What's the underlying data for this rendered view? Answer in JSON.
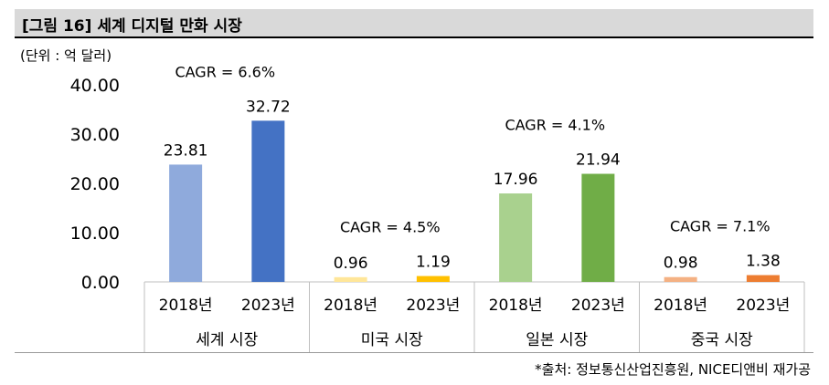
{
  "title": "[그림 16] 세계 디지털 만화 시장",
  "unit": "(단위 : 억 달러)",
  "source": "*출처: 정보통신산업진흥원, NICE디앤비 재가공",
  "colors": {
    "title_bg": "#d9d9d9",
    "axis": "#bfbfbf"
  },
  "chart_data": {
    "type": "bar",
    "title": "[그림 16] 세계 디지털 만화 시장",
    "ylabel": "(단위 : 억 달러)",
    "ylim": [
      0,
      40
    ],
    "yticks": [
      "0.00",
      "10.00",
      "20.00",
      "30.00",
      "40.00"
    ],
    "grid": false,
    "groups": [
      {
        "name": "세계 시장",
        "cagr_label": "CAGR =  6.6%",
        "bars": [
          {
            "year": "2018년",
            "value": 23.81,
            "label": "23.81",
            "color": "#8faadc"
          },
          {
            "year": "2023년",
            "value": 32.72,
            "label": "32.72",
            "color": "#4472c4"
          }
        ]
      },
      {
        "name": "미국 시장",
        "cagr_label": "CAGR =  4.5%",
        "bars": [
          {
            "year": "2018년",
            "value": 0.96,
            "label": "0.96",
            "color": "#ffe699"
          },
          {
            "year": "2023년",
            "value": 1.19,
            "label": "1.19",
            "color": "#ffc000"
          }
        ]
      },
      {
        "name": "일본 시장",
        "cagr_label": "CAGR =  4.1%",
        "bars": [
          {
            "year": "2018년",
            "value": 17.96,
            "label": "17.96",
            "color": "#a9d18e"
          },
          {
            "year": "2023년",
            "value": 21.94,
            "label": "21.94",
            "color": "#70ad47"
          }
        ]
      },
      {
        "name": "중국 시장",
        "cagr_label": "CAGR =  7.1%",
        "bars": [
          {
            "year": "2018년",
            "value": 0.98,
            "label": "0.98",
            "color": "#f4b183"
          },
          {
            "year": "2023년",
            "value": 1.38,
            "label": "1.38",
            "color": "#ed7d31"
          }
        ]
      }
    ]
  }
}
